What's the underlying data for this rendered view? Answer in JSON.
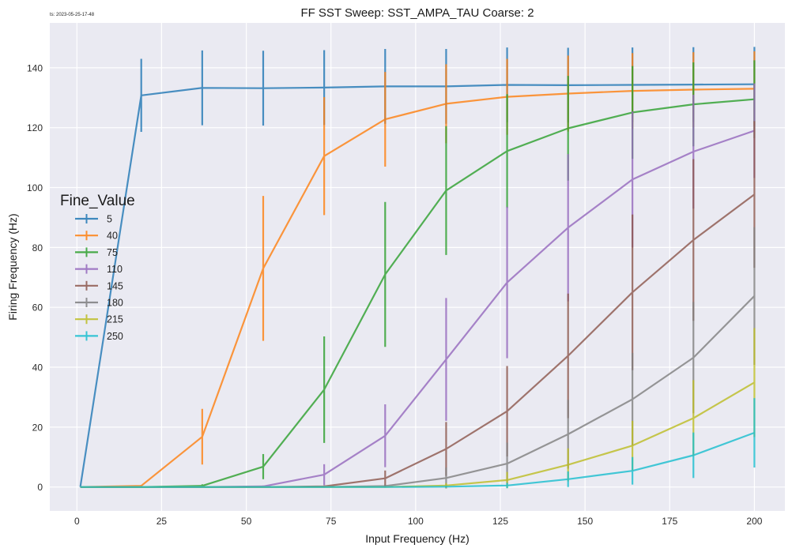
{
  "timestamp": "ts: 2023-05-25-17-48",
  "chart_data": {
    "type": "line",
    "title": "FF SST Sweep: SST_AMPA_TAU Coarse: 2",
    "xlabel": "Input Frequency (Hz)",
    "ylabel": "Firing Frequency (Hz)",
    "xlim": [
      -8,
      209
    ],
    "ylim": [
      -8,
      155
    ],
    "xticks": [
      0,
      25,
      50,
      75,
      100,
      125,
      150,
      175,
      200
    ],
    "yticks": [
      0,
      20,
      40,
      60,
      80,
      100,
      120,
      140
    ],
    "grid": true,
    "error_bars": true,
    "legend": {
      "title": "Fine_Value",
      "placement": "center-left"
    },
    "x": [
      1,
      19,
      37,
      55,
      73,
      91,
      109,
      127,
      145,
      164,
      182,
      200
    ],
    "series": [
      {
        "name": "5",
        "color": "#1f77b4",
        "values": [
          0,
          130.8,
          133.3,
          133.2,
          133.4,
          133.8,
          133.8,
          134.3,
          134.2,
          134.3,
          134.4,
          134.5
        ],
        "errors": [
          0,
          12.2,
          12.5,
          12.5,
          12.5,
          12.5,
          12.5,
          12.5,
          12.5,
          12.5,
          12.5,
          12.5
        ]
      },
      {
        "name": "40",
        "color": "#ff7f0e",
        "values": [
          0,
          0.4,
          16.8,
          73.0,
          110.5,
          122.8,
          128.0,
          130.3,
          131.4,
          132.3,
          132.7,
          133.0
        ],
        "errors": [
          0,
          0.3,
          9.3,
          24.2,
          19.7,
          15.8,
          13.2,
          12.7,
          12.7,
          12.6,
          12.5,
          12.5
        ]
      },
      {
        "name": "75",
        "color": "#2ca02c",
        "values": [
          0,
          0,
          0.4,
          6.8,
          32.5,
          71.0,
          99.0,
          112.2,
          119.8,
          125.1,
          127.8,
          129.5
        ],
        "errors": [
          0,
          0,
          0.5,
          4.2,
          17.8,
          24.2,
          21.5,
          19.0,
          17.5,
          15.5,
          14.0,
          13.0
        ]
      },
      {
        "name": "110",
        "color": "#9467bd",
        "values": [
          0,
          0,
          0,
          0.2,
          4.1,
          17.1,
          42.6,
          68.3,
          86.6,
          102.7,
          112.0,
          119.0
        ],
        "errors": [
          0,
          0,
          0,
          0.3,
          3.5,
          10.5,
          20.5,
          25.3,
          24.6,
          22.7,
          19.0,
          15.8
        ]
      },
      {
        "name": "145",
        "color": "#8c564b",
        "values": [
          0,
          0,
          0,
          0,
          0.2,
          2.9,
          12.7,
          25.3,
          43.8,
          65.0,
          82.5,
          97.7
        ],
        "errors": [
          0,
          0,
          0,
          0,
          0.3,
          2.6,
          9.0,
          15.1,
          20.8,
          26.0,
          27.0,
          24.5
        ]
      },
      {
        "name": "180",
        "color": "#7f7f7f",
        "values": [
          0,
          0,
          0,
          0,
          0,
          0.3,
          3.0,
          7.8,
          17.6,
          29.3,
          43.2,
          63.8
        ],
        "errors": [
          0,
          0,
          0,
          0,
          0,
          0.5,
          3.5,
          7.0,
          11.5,
          15.5,
          18.6,
          23.0
        ]
      },
      {
        "name": "215",
        "color": "#bcbd22",
        "values": [
          0,
          0,
          0,
          0,
          0,
          0,
          0.5,
          2.3,
          7.4,
          13.8,
          23.0,
          34.9
        ],
        "errors": [
          0,
          0,
          0,
          0,
          0,
          0,
          0.8,
          2.7,
          5.5,
          8.3,
          12.7,
          18.2
        ]
      },
      {
        "name": "250",
        "color": "#17becf",
        "values": [
          0,
          0,
          0,
          0,
          0,
          0,
          0.1,
          0.5,
          2.6,
          5.4,
          10.6,
          18.1
        ],
        "errors": [
          0,
          0,
          0,
          0,
          0,
          0,
          0.3,
          0.9,
          2.6,
          4.6,
          7.6,
          11.6
        ]
      }
    ]
  }
}
